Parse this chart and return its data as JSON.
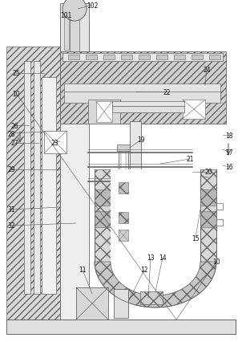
{
  "bg": "white",
  "lc": "#666666",
  "hc": "#aaaaaa",
  "fc_hatch": "#d4d4d4",
  "fc_light": "#eeeeee",
  "fc_white": "white",
  "lw": 0.6,
  "fig_w": 3.02,
  "fig_h": 4.27,
  "dpi": 100
}
